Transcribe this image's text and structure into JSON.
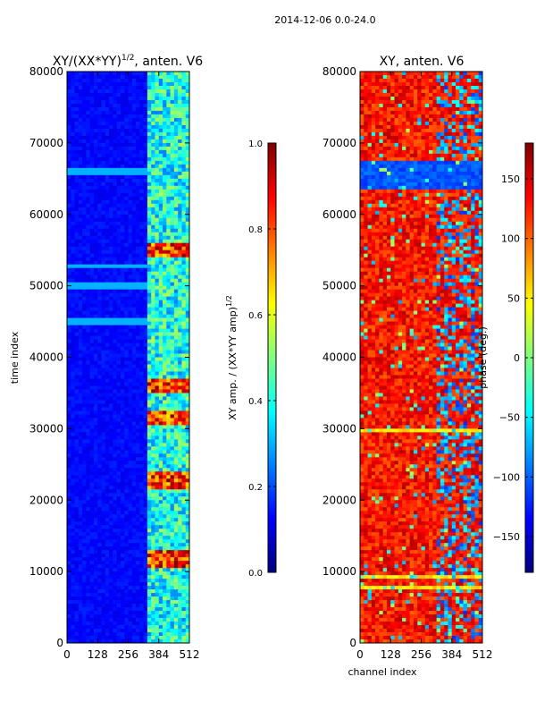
{
  "suptitle": "2014-12-06 0.0-24.0",
  "colors": {
    "jet": [
      "#00007f",
      "#0000ff",
      "#007fff",
      "#00ffff",
      "#7fff7f",
      "#ffff00",
      "#ff7f00",
      "#ff0000",
      "#7f0000"
    ],
    "axis": "#000000",
    "background": "#ffffff"
  },
  "chart_data": [
    {
      "type": "heatmap",
      "name": "amplitude",
      "title_main": "XY/(XX*YY)",
      "title_sup": "1/2",
      "title_rest": ", anten. V6",
      "xlabel": "",
      "ylabel": "time index",
      "xlim": [
        0,
        512
      ],
      "ylim": [
        0,
        80000
      ],
      "xticks": [
        0,
        128,
        256,
        384,
        512
      ],
      "yticks": [
        0,
        10000,
        20000,
        30000,
        40000,
        50000,
        60000,
        70000,
        80000
      ],
      "colorbar": {
        "label_main": "XY amp. / (XX*YY amp)",
        "label_sup": "1/2",
        "range": [
          0,
          1
        ],
        "ticks": [
          0.0,
          0.2,
          0.4,
          0.6,
          0.8,
          1.0
        ],
        "tick_labels": [
          "0.0",
          "0.2",
          "0.4",
          "0.6",
          "0.8",
          "1.0"
        ]
      },
      "features": {
        "background_value": 0.1,
        "high_band_channels": [
          330,
          512
        ],
        "peak_time_windows": [
          [
            10500,
            13000
          ],
          [
            21500,
            24000
          ],
          [
            30500,
            32500
          ],
          [
            35000,
            37000
          ],
          [
            54000,
            56000
          ]
        ],
        "bright_rows": [
          45000,
          50000,
          52800,
          66000
        ]
      }
    },
    {
      "type": "heatmap",
      "name": "phase",
      "title_main": "XY, anten. V6",
      "xlabel": "channel index",
      "ylabel": "",
      "xlim": [
        0,
        512
      ],
      "ylim": [
        0,
        80000
      ],
      "xticks": [
        0,
        128,
        256,
        384,
        512
      ],
      "yticks": [
        0,
        10000,
        20000,
        30000,
        40000,
        50000,
        60000,
        70000,
        80000
      ],
      "colorbar": {
        "label_main": "phase (deg.)",
        "range": [
          -180,
          180
        ],
        "ticks": [
          -150,
          -100,
          -50,
          0,
          50,
          100,
          150
        ],
        "tick_labels": [
          "−150",
          "−100",
          "−50",
          "0",
          "50",
          "100",
          "150"
        ]
      },
      "features": {
        "background_value": 130,
        "blue_band_time": [
          63500,
          67500
        ],
        "blue_patch_channels": [
          320,
          512
        ],
        "green_stripes": [
          3000,
          5000,
          7800,
          9200,
          13500,
          17000,
          20500,
          27500,
          29800,
          34500,
          45000,
          49000,
          51000,
          58000,
          76000,
          79000
        ]
      }
    }
  ]
}
